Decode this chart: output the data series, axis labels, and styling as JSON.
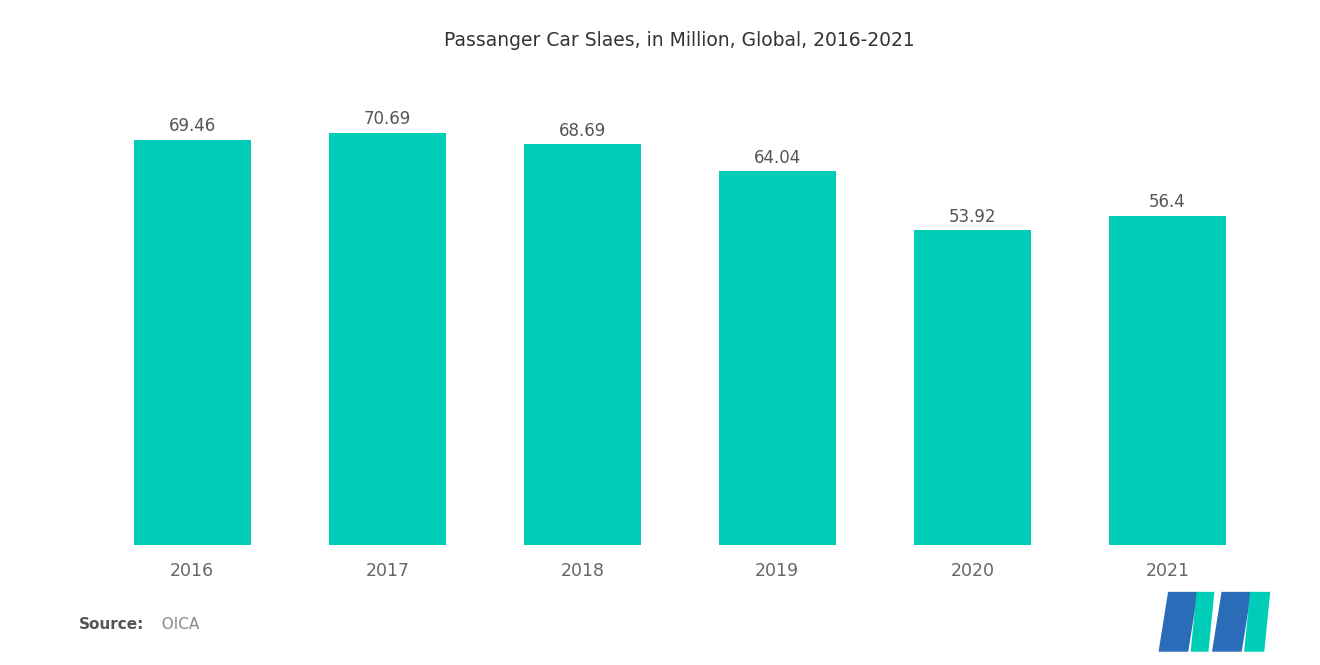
{
  "title": "Passanger Car Slaes, in Million, Global, 2016-2021",
  "categories": [
    "2016",
    "2017",
    "2018",
    "2019",
    "2020",
    "2021"
  ],
  "values": [
    69.46,
    70.69,
    68.69,
    64.04,
    53.92,
    56.4
  ],
  "bar_color": "#00CDB7",
  "background_color": "#ffffff",
  "title_fontsize": 13.5,
  "label_fontsize": 12.5,
  "value_fontsize": 12,
  "source_bold": "Source:",
  "source_normal": "  OICA",
  "bar_width": 0.6,
  "ylim": [
    0,
    82
  ],
  "logo_blue": "#2B6CB8",
  "logo_teal": "#00CDB7"
}
